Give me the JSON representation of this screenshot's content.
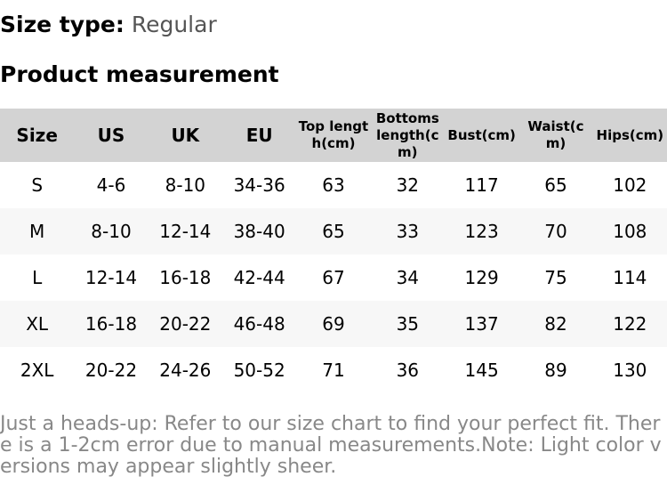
{
  "size_type": {
    "label": "Size type:",
    "value": "Regular"
  },
  "section_title": "Product measurement",
  "table": {
    "header": [
      "Size",
      "US",
      "UK",
      "EU",
      "Top length(cm)",
      "Bottoms length(cm)",
      "Bust(cm)",
      "Waist(cm)",
      "Hips(cm)"
    ],
    "rows": [
      [
        "S",
        "4-6",
        "8-10",
        "34-36",
        "63",
        "32",
        "117",
        "65",
        "102"
      ],
      [
        "M",
        "8-10",
        "12-14",
        "38-40",
        "65",
        "33",
        "123",
        "70",
        "108"
      ],
      [
        "L",
        "12-14",
        "16-18",
        "42-44",
        "67",
        "34",
        "129",
        "75",
        "114"
      ],
      [
        "XL",
        "16-18",
        "20-22",
        "46-48",
        "69",
        "35",
        "137",
        "82",
        "122"
      ],
      [
        "2XL",
        "20-22",
        "24-26",
        "50-52",
        "71",
        "36",
        "145",
        "89",
        "130"
      ]
    ]
  },
  "note": "Just a heads-up: Refer to our size chart to find your perfect fit. There is a 1-2cm error due to manual measurements.Note: Light color versions may appear slightly sheer."
}
